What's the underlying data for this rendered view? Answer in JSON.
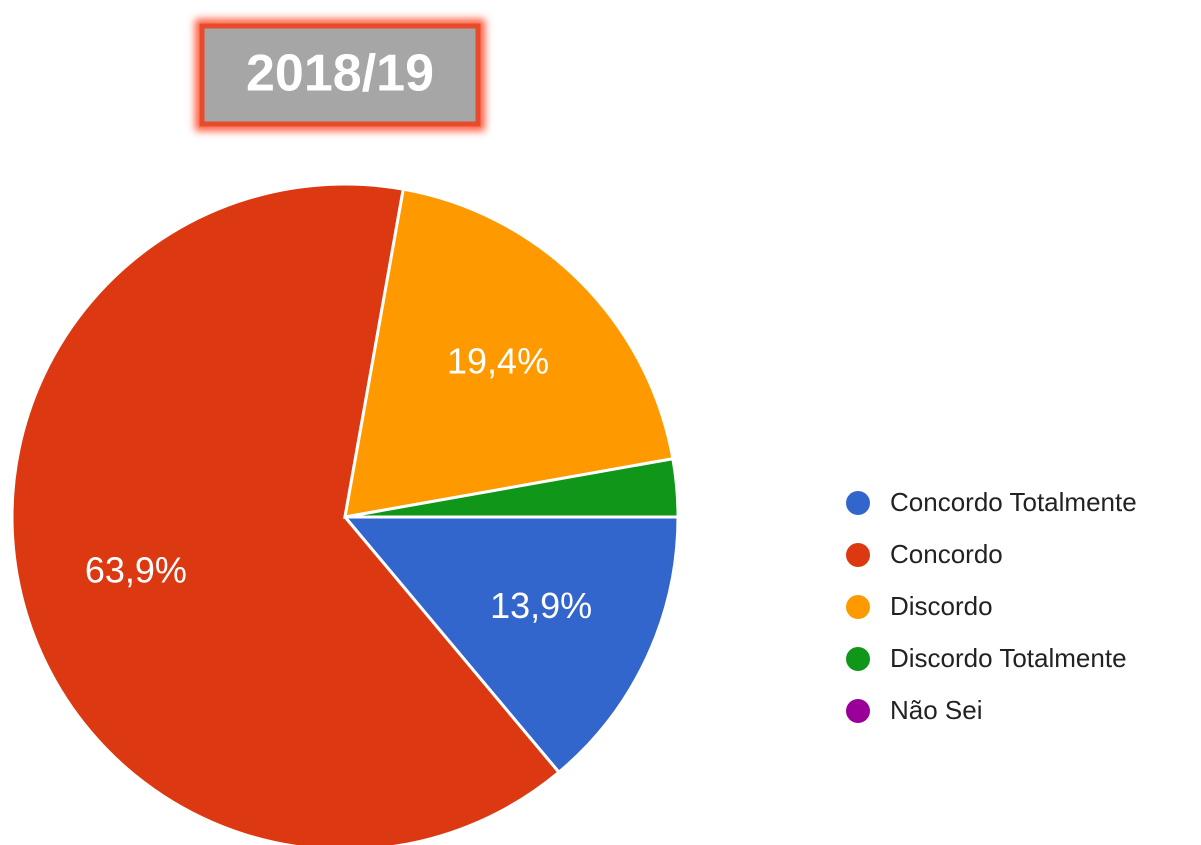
{
  "chart_data": {
    "type": "pie",
    "title": "2018/19",
    "categories": [
      "Concordo Totalmente",
      "Concordo",
      "Discordo",
      "Discordo Totalmente",
      "Não Sei"
    ],
    "values": [
      13.9,
      63.9,
      19.4,
      2.8,
      0
    ],
    "value_labels": [
      "13,9%",
      "63,9%",
      "19,4%",
      null,
      null
    ],
    "colors": [
      "#3366cc",
      "#dc3912",
      "#ff9900",
      "#109618",
      "#990099"
    ],
    "legend": "right"
  }
}
